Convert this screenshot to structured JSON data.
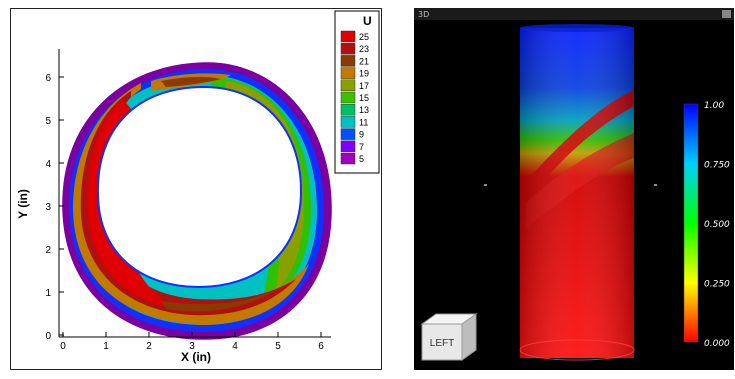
{
  "left_plot": {
    "x_axis": {
      "label": "X (in)",
      "ticks": [
        "0",
        "1",
        "2",
        "3",
        "4",
        "5",
        "6"
      ]
    },
    "y_axis": {
      "label": "Y (in)",
      "ticks": [
        "0",
        "1",
        "2",
        "3",
        "4",
        "5",
        "6"
      ]
    },
    "legend": {
      "title": "U",
      "levels": [
        {
          "label": "25",
          "color": "#e00000"
        },
        {
          "label": "23",
          "color": "#b01010"
        },
        {
          "label": "21",
          "color": "#8a3a00"
        },
        {
          "label": "19",
          "color": "#c07a00"
        },
        {
          "label": "17",
          "color": "#8aa000"
        },
        {
          "label": "15",
          "color": "#3fbf00"
        },
        {
          "label": "13",
          "color": "#00c060"
        },
        {
          "label": "11",
          "color": "#00c0c0"
        },
        {
          "label": "9",
          "color": "#0050ff"
        },
        {
          "label": "7",
          "color": "#8000ff"
        },
        {
          "label": "5",
          "color": "#a000c0"
        }
      ]
    }
  },
  "right_view": {
    "window_label": "3D",
    "view_cube_label": "LEFT",
    "colorbar": {
      "ticks": [
        "1.00",
        "0.750",
        "0.500",
        "0.250",
        "0.000"
      ],
      "colors": [
        "#0000ff",
        "#00d0ff",
        "#00ff00",
        "#ffff00",
        "#ff0000"
      ]
    }
  }
}
